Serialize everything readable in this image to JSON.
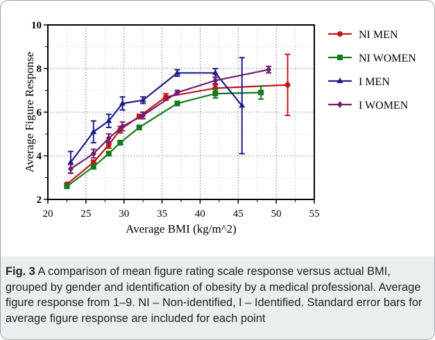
{
  "chart_data": {
    "type": "line",
    "title": "",
    "xlabel": "Average BMI (kg/m^2)",
    "ylabel": "Average Figure Response",
    "xlim": [
      20,
      55
    ],
    "ylim": [
      2,
      10
    ],
    "x_ticks": [
      "20",
      "25",
      "30",
      "35",
      "40",
      "45",
      "50",
      "55"
    ],
    "y_ticks": [
      "2",
      "4",
      "6",
      "8",
      "10"
    ],
    "grid": "dotted, both axes",
    "legend_position": "right",
    "series": [
      {
        "name": "NI MEN",
        "color": "#c0161b",
        "marker": "circle",
        "points": [
          {
            "x": 22.5,
            "y": 2.7,
            "err": 0.05
          },
          {
            "x": 26,
            "y": 3.7,
            "err": 0.1
          },
          {
            "x": 28,
            "y": 4.5,
            "err": 0.15
          },
          {
            "x": 29.5,
            "y": 5.2,
            "err": 0.15
          },
          {
            "x": 32,
            "y": 5.8,
            "err": 0.1
          },
          {
            "x": 35.5,
            "y": 6.7,
            "err": 0.15
          },
          {
            "x": 42,
            "y": 7.1,
            "err": 0.15
          },
          {
            "x": 51.5,
            "y": 7.25,
            "err": 1.4
          }
        ]
      },
      {
        "name": "NI WOMEN",
        "color": "#137b1b",
        "marker": "square",
        "points": [
          {
            "x": 22.5,
            "y": 2.6,
            "err": 0.05
          },
          {
            "x": 26,
            "y": 3.5,
            "err": 0.1
          },
          {
            "x": 28,
            "y": 4.1,
            "err": 0.1
          },
          {
            "x": 29.5,
            "y": 4.6,
            "err": 0.1
          },
          {
            "x": 32,
            "y": 5.3,
            "err": 0.1
          },
          {
            "x": 37,
            "y": 6.4,
            "err": 0.1
          },
          {
            "x": 42,
            "y": 6.85,
            "err": 0.2
          },
          {
            "x": 48,
            "y": 6.9,
            "err": 0.3
          }
        ]
      },
      {
        "name": "I MEN",
        "color": "#1c1c8a",
        "marker": "triangle",
        "points": [
          {
            "x": 23,
            "y": 3.7,
            "err": 0.5
          },
          {
            "x": 26,
            "y": 5.1,
            "err": 0.5
          },
          {
            "x": 28,
            "y": 5.6,
            "err": 0.3
          },
          {
            "x": 29.8,
            "y": 6.4,
            "err": 0.3
          },
          {
            "x": 32.5,
            "y": 6.55,
            "err": 0.15
          },
          {
            "x": 37,
            "y": 7.8,
            "err": 0.15
          },
          {
            "x": 42,
            "y": 7.8,
            "err": 0.2
          },
          {
            "x": 45.5,
            "y": 6.3,
            "err": 2.2
          }
        ]
      },
      {
        "name": "I WOMEN",
        "color": "#6d1f6e",
        "marker": "diamond",
        "points": [
          {
            "x": 23,
            "y": 3.4,
            "err": 0.2
          },
          {
            "x": 26,
            "y": 4.1,
            "err": 0.2
          },
          {
            "x": 28,
            "y": 4.8,
            "err": 0.2
          },
          {
            "x": 29.8,
            "y": 5.35,
            "err": 0.2
          },
          {
            "x": 32.5,
            "y": 5.85,
            "err": 0.15
          },
          {
            "x": 37,
            "y": 6.9,
            "err": 0.1
          },
          {
            "x": 42,
            "y": 7.45,
            "err": 0.15
          },
          {
            "x": 49,
            "y": 7.95,
            "err": 0.15
          }
        ]
      }
    ]
  },
  "caption": {
    "label": "Fig. 3",
    "text": " A comparison of mean figure rating scale response versus actual BMI, grouped by gender and identification of obesity by a medical professional. Average figure response from 1–9. NI – Non-identified, I – Identified. Standard error bars for average figure response are included for each point"
  }
}
